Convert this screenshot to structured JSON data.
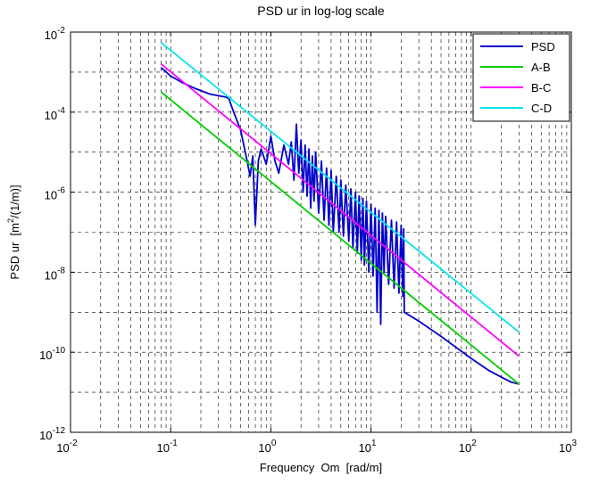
{
  "chart_data": {
    "type": "line",
    "title": "PSD ur in log-log scale",
    "xlabel": "Frequency  Om  [rad/m]",
    "ylabel": {
      "prefix": "PSD ur  [m",
      "sup": "2",
      "suffix": "/(1/m)]"
    },
    "x_scale": "log",
    "y_scale": "log",
    "xlim": [
      0.01,
      1000
    ],
    "ylim": [
      1e-12,
      0.01
    ],
    "grid": true,
    "legend_position": "top-right",
    "x_ticks": [
      {
        "value": 0.01,
        "base": "10",
        "exp": "-2"
      },
      {
        "value": 0.1,
        "base": "10",
        "exp": "-1"
      },
      {
        "value": 1,
        "base": "10",
        "exp": "0"
      },
      {
        "value": 10,
        "base": "10",
        "exp": "1"
      },
      {
        "value": 100,
        "base": "10",
        "exp": "2"
      },
      {
        "value": 1000,
        "base": "10",
        "exp": "3"
      }
    ],
    "y_ticks": [
      {
        "value": 1e-12,
        "base": "10",
        "exp": "-12"
      },
      {
        "value": 1e-10,
        "base": "10",
        "exp": "-10"
      },
      {
        "value": 1e-08,
        "base": "10",
        "exp": "-8"
      },
      {
        "value": 1e-06,
        "base": "10",
        "exp": "-6"
      },
      {
        "value": 0.0001,
        "base": "10",
        "exp": "-4"
      },
      {
        "value": 0.01,
        "base": "10",
        "exp": "-2"
      }
    ],
    "series": [
      {
        "name": "PSD",
        "color": "#0000cc",
        "x": [
          0.08,
          0.1,
          0.13,
          0.18,
          0.25,
          0.35,
          0.38,
          0.42,
          0.5,
          0.58,
          0.62,
          0.66,
          0.7,
          0.75,
          0.8,
          0.9,
          1.0,
          1.1,
          1.2,
          1.35,
          1.5,
          1.6,
          1.7,
          1.8,
          1.9,
          2.0,
          2.1,
          2.2,
          2.3,
          2.4,
          2.5,
          2.6,
          2.7,
          2.8,
          3.0,
          3.2,
          3.4,
          3.6,
          3.8,
          4.0,
          4.2,
          4.5,
          4.8,
          5.0,
          5.3,
          5.6,
          6.0,
          6.3,
          6.6,
          7.0,
          7.3,
          7.6,
          8.0,
          8.3,
          8.6,
          9.0,
          9.5,
          10.0,
          10.5,
          11.0,
          11.5,
          12.0,
          12.5,
          13.0,
          13.5,
          14.0,
          15.0,
          16.0,
          17.0,
          18.0,
          19.0,
          20.0,
          20.8,
          21.2,
          21.5,
          30.0,
          50.0,
          100.0,
          150.0,
          200.0,
          250.0,
          300.0
        ],
        "y": [
          0.0013,
          0.0008,
          0.00055,
          0.00038,
          0.00028,
          0.00024,
          0.00022,
          0.00011,
          3.5e-05,
          6e-06,
          2.5e-06,
          8e-06,
          1.5e-07,
          6e-06,
          1.2e-05,
          5e-06,
          2.5e-05,
          6e-06,
          3e-06,
          1.5e-05,
          5e-06,
          1.8e-05,
          2e-06,
          5e-05,
          3e-06,
          2e-05,
          1e-06,
          1.5e-05,
          8e-07,
          1.2e-05,
          4e-07,
          8e-06,
          6e-07,
          1e-05,
          3e-07,
          6e-06,
          2e-07,
          4e-06,
          1.5e-07,
          3.5e-06,
          1e-07,
          2.5e-06,
          1e-07,
          2e-06,
          8e-08,
          1.5e-06,
          6e-08,
          1.2e-06,
          4e-08,
          1e-06,
          3e-08,
          8e-07,
          2e-08,
          7e-07,
          1.5e-08,
          6e-07,
          1e-08,
          5e-07,
          8e-09,
          4e-07,
          1e-09,
          3.5e-07,
          5e-10,
          3e-07,
          1e-08,
          2.5e-07,
          5e-09,
          2e-07,
          4e-09,
          1.8e-07,
          3e-09,
          1.5e-07,
          2.5e-09,
          1.2e-07,
          1e-09,
          6e-10,
          2.5e-10,
          7e-11,
          3.5e-11,
          2.4e-11,
          1.8e-11,
          1.6e-11
        ]
      },
      {
        "name": "A-B",
        "color": "#00cc00",
        "x": [
          0.08,
          300
        ],
        "y": [
          0.00032,
          1.6e-11
        ]
      },
      {
        "name": "B-C",
        "color": "#ff00ff",
        "x": [
          0.08,
          300
        ],
        "y": [
          0.0016,
          8e-11
        ]
      },
      {
        "name": "C-D",
        "color": "#00e5ee",
        "x": [
          0.08,
          300
        ],
        "y": [
          0.0055,
          3.2e-10
        ]
      }
    ]
  }
}
